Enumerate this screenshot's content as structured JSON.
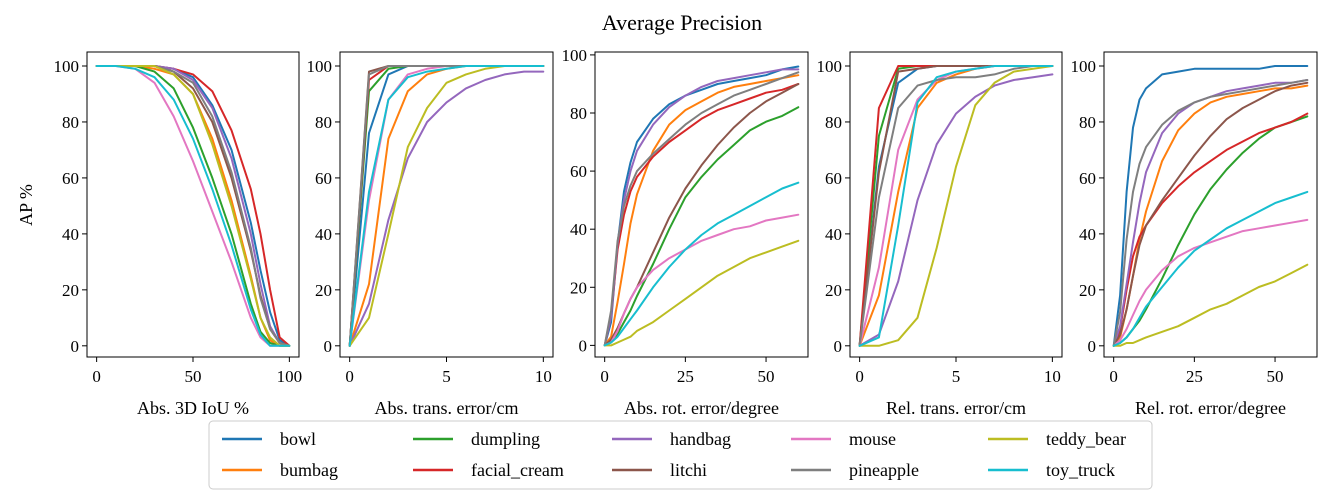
{
  "figure_title": "Average Precision",
  "ylabel": "AP %",
  "series_names": [
    "bowl",
    "bumbag",
    "dumpling",
    "facial_cream",
    "handbag",
    "litchi",
    "mouse",
    "pineapple",
    "teddy_bear",
    "toy_truck"
  ],
  "colors": {
    "bowl": "#1f77b4",
    "bumbag": "#ff7f0e",
    "dumpling": "#2ca02c",
    "facial_cream": "#d62728",
    "handbag": "#9467bd",
    "litchi": "#8c564b",
    "mouse": "#e377c2",
    "pineapple": "#7f7f7f",
    "teddy_bear": "#bcbd22",
    "toy_truck": "#17becf"
  },
  "legend": {
    "placement": "bottom-center",
    "columns": 5
  },
  "chart_data": [
    {
      "type": "line",
      "xlabel": "Abs. 3D IoU %",
      "ylabel": "AP %",
      "xlim": [
        -5,
        105
      ],
      "ylim": [
        -4,
        105
      ],
      "xticks": [
        0,
        50,
        100
      ],
      "yticks": [
        0,
        20,
        40,
        60,
        80,
        100
      ],
      "grid": false,
      "x": [
        0,
        10,
        20,
        30,
        40,
        50,
        60,
        70,
        80,
        85,
        90,
        95,
        100
      ],
      "series": [
        {
          "name": "bowl",
          "values": [
            100,
            100,
            100,
            100,
            99,
            96,
            86,
            70,
            44,
            27,
            12,
            2,
            0
          ]
        },
        {
          "name": "bumbag",
          "values": [
            100,
            100,
            100,
            99,
            97,
            90,
            74,
            52,
            25,
            10,
            2,
            0,
            0
          ]
        },
        {
          "name": "dumpling",
          "values": [
            100,
            100,
            100,
            98,
            92,
            78,
            60,
            40,
            15,
            5,
            1,
            0,
            0
          ]
        },
        {
          "name": "facial_cream",
          "values": [
            100,
            100,
            100,
            100,
            99,
            97,
            91,
            77,
            56,
            40,
            20,
            3,
            0
          ]
        },
        {
          "name": "handbag",
          "values": [
            100,
            100,
            100,
            100,
            99,
            95,
            85,
            67,
            40,
            22,
            7,
            1,
            0
          ]
        },
        {
          "name": "litchi",
          "values": [
            100,
            100,
            100,
            100,
            98,
            92,
            80,
            60,
            34,
            18,
            6,
            1,
            0
          ]
        },
        {
          "name": "mouse",
          "values": [
            100,
            100,
            99,
            94,
            82,
            66,
            48,
            30,
            10,
            3,
            0,
            0,
            0
          ]
        },
        {
          "name": "pineapple",
          "values": [
            100,
            100,
            100,
            100,
            98,
            94,
            82,
            62,
            35,
            17,
            6,
            1,
            0
          ]
        },
        {
          "name": "teddy_bear",
          "values": [
            100,
            100,
            100,
            100,
            97,
            90,
            72,
            50,
            24,
            10,
            3,
            0,
            0
          ]
        },
        {
          "name": "toy_truck",
          "values": [
            100,
            100,
            99,
            96,
            88,
            74,
            56,
            36,
            13,
            4,
            0,
            0,
            0
          ]
        }
      ]
    },
    {
      "type": "line",
      "xlabel": "Abs. trans. error/cm",
      "xlim": [
        -0.5,
        10.5
      ],
      "ylim": [
        -4,
        105
      ],
      "xticks": [
        0,
        5,
        10
      ],
      "yticks": [
        0,
        20,
        40,
        60,
        80,
        100
      ],
      "grid": false,
      "x": [
        0,
        1,
        2,
        3,
        4,
        5,
        6,
        7,
        8,
        9,
        10
      ],
      "series": [
        {
          "name": "bowl",
          "values": [
            0,
            76,
            97,
            100,
            100,
            100,
            100,
            100,
            100,
            100,
            100
          ]
        },
        {
          "name": "bumbag",
          "values": [
            0,
            22,
            74,
            91,
            97,
            99,
            100,
            100,
            100,
            100,
            100
          ]
        },
        {
          "name": "dumpling",
          "values": [
            0,
            91,
            99,
            100,
            100,
            100,
            100,
            100,
            100,
            100,
            100
          ]
        },
        {
          "name": "facial_cream",
          "values": [
            0,
            95,
            100,
            100,
            100,
            100,
            100,
            100,
            100,
            100,
            100
          ]
        },
        {
          "name": "handbag",
          "values": [
            0,
            15,
            45,
            67,
            80,
            87,
            92,
            95,
            97,
            98,
            98
          ]
        },
        {
          "name": "litchi",
          "values": [
            0,
            98,
            100,
            100,
            100,
            100,
            100,
            100,
            100,
            100,
            100
          ]
        },
        {
          "name": "mouse",
          "values": [
            0,
            52,
            88,
            97,
            99,
            100,
            100,
            100,
            100,
            100,
            100
          ]
        },
        {
          "name": "pineapple",
          "values": [
            0,
            97,
            100,
            100,
            100,
            100,
            100,
            100,
            100,
            100,
            100
          ]
        },
        {
          "name": "teddy_bear",
          "values": [
            0,
            10,
            40,
            71,
            85,
            94,
            97,
            99,
            100,
            100,
            100
          ]
        },
        {
          "name": "toy_truck",
          "values": [
            0,
            55,
            88,
            96,
            98,
            99,
            100,
            100,
            100,
            100,
            100
          ]
        }
      ]
    },
    {
      "type": "line",
      "xlabel": "Abs. rot. error/degree",
      "xlim": [
        -3,
        63
      ],
      "ylim": [
        -4,
        101
      ],
      "xticks": [
        0,
        25,
        50
      ],
      "yticks": [
        0,
        20,
        40,
        60,
        80,
        100
      ],
      "grid": false,
      "x": [
        0,
        2,
        4,
        6,
        8,
        10,
        15,
        20,
        25,
        30,
        35,
        40,
        45,
        50,
        55,
        60
      ],
      "series": [
        {
          "name": "bowl",
          "values": [
            0,
            8,
            35,
            53,
            63,
            70,
            78,
            83,
            86,
            88,
            90,
            91,
            92,
            93,
            95,
            96
          ]
        },
        {
          "name": "bumbag",
          "values": [
            0,
            3,
            15,
            28,
            42,
            52,
            67,
            76,
            81,
            84,
            87,
            89,
            90,
            91,
            92,
            93
          ]
        },
        {
          "name": "dumpling",
          "values": [
            0,
            1,
            4,
            8,
            12,
            17,
            28,
            40,
            51,
            58,
            64,
            69,
            74,
            77,
            79,
            82
          ]
        },
        {
          "name": "facial_cream",
          "values": [
            0,
            10,
            33,
            45,
            53,
            58,
            65,
            70,
            74,
            78,
            81,
            83,
            85,
            87,
            88,
            90
          ]
        },
        {
          "name": "handbag",
          "values": [
            0,
            10,
            35,
            50,
            60,
            67,
            76,
            82,
            86,
            89,
            91,
            92,
            93,
            94,
            95,
            95
          ]
        },
        {
          "name": "litchi",
          "values": [
            0,
            2,
            6,
            11,
            16,
            20,
            32,
            44,
            54,
            62,
            69,
            75,
            80,
            84,
            87,
            90
          ]
        },
        {
          "name": "mouse",
          "values": [
            0,
            1,
            5,
            11,
            16,
            20,
            26,
            30,
            33,
            36,
            38,
            40,
            41,
            43,
            44,
            45
          ]
        },
        {
          "name": "pineapple",
          "values": [
            0,
            12,
            36,
            48,
            55,
            60,
            66,
            71,
            76,
            80,
            83,
            86,
            88,
            90,
            92,
            94
          ]
        },
        {
          "name": "teddy_bear",
          "values": [
            0,
            0,
            1,
            2,
            3,
            5,
            8,
            12,
            16,
            20,
            24,
            27,
            30,
            32,
            34,
            36
          ]
        },
        {
          "name": "toy_truck",
          "values": [
            0,
            1,
            3,
            6,
            9,
            12,
            20,
            27,
            33,
            38,
            42,
            45,
            48,
            51,
            54,
            56
          ]
        }
      ]
    },
    {
      "type": "line",
      "xlabel": "Rel. trans. error/cm",
      "xlim": [
        -0.5,
        10.5
      ],
      "ylim": [
        -4,
        105
      ],
      "xticks": [
        0,
        5,
        10
      ],
      "yticks": [
        0,
        20,
        40,
        60,
        80,
        100
      ],
      "grid": false,
      "x": [
        0,
        1,
        2,
        3,
        4,
        5,
        6,
        7,
        8,
        9,
        10
      ],
      "series": [
        {
          "name": "bowl",
          "values": [
            0,
            64,
            94,
            99,
            100,
            100,
            100,
            100,
            100,
            100,
            100
          ]
        },
        {
          "name": "bumbag",
          "values": [
            0,
            18,
            55,
            85,
            94,
            97,
            99,
            100,
            100,
            100,
            100
          ]
        },
        {
          "name": "dumpling",
          "values": [
            0,
            75,
            99,
            100,
            100,
            100,
            100,
            100,
            100,
            100,
            100
          ]
        },
        {
          "name": "facial_cream",
          "values": [
            0,
            85,
            100,
            100,
            100,
            100,
            100,
            100,
            100,
            100,
            100
          ]
        },
        {
          "name": "handbag",
          "values": [
            0,
            4,
            23,
            52,
            72,
            83,
            89,
            93,
            95,
            96,
            97
          ]
        },
        {
          "name": "litchi",
          "values": [
            0,
            62,
            98,
            99,
            100,
            100,
            100,
            100,
            100,
            100,
            100
          ]
        },
        {
          "name": "mouse",
          "values": [
            0,
            28,
            70,
            88,
            95,
            98,
            99,
            100,
            100,
            100,
            100
          ]
        },
        {
          "name": "pineapple",
          "values": [
            0,
            53,
            85,
            93,
            95,
            96,
            96,
            97,
            99,
            100,
            100
          ]
        },
        {
          "name": "teddy_bear",
          "values": [
            0,
            0,
            2,
            10,
            35,
            64,
            86,
            94,
            98,
            99,
            100
          ]
        },
        {
          "name": "toy_truck",
          "values": [
            0,
            3,
            43,
            87,
            96,
            98,
            99,
            100,
            100,
            100,
            100
          ]
        }
      ]
    },
    {
      "type": "line",
      "xlabel": "Rel. rot. error/degree",
      "xlim": [
        -3,
        63
      ],
      "ylim": [
        -4,
        105
      ],
      "xticks": [
        0,
        25,
        50
      ],
      "yticks": [
        0,
        20,
        40,
        60,
        80,
        100
      ],
      "grid": false,
      "x": [
        0,
        2,
        4,
        6,
        8,
        10,
        15,
        20,
        25,
        30,
        35,
        40,
        45,
        50,
        55,
        60
      ],
      "series": [
        {
          "name": "bowl",
          "values": [
            0,
            18,
            55,
            78,
            88,
            92,
            97,
            98,
            99,
            99,
            99,
            99,
            99,
            100,
            100,
            100
          ]
        },
        {
          "name": "bumbag",
          "values": [
            0,
            3,
            13,
            25,
            38,
            48,
            66,
            77,
            83,
            87,
            89,
            90,
            91,
            92,
            92,
            93
          ]
        },
        {
          "name": "dumpling",
          "values": [
            0,
            1,
            3,
            6,
            9,
            13,
            24,
            36,
            47,
            56,
            63,
            69,
            74,
            78,
            80,
            82
          ]
        },
        {
          "name": "facial_cream",
          "values": [
            0,
            6,
            20,
            32,
            39,
            43,
            51,
            57,
            62,
            66,
            70,
            73,
            76,
            78,
            80,
            83
          ]
        },
        {
          "name": "handbag",
          "values": [
            0,
            7,
            22,
            37,
            51,
            62,
            76,
            83,
            87,
            89,
            91,
            92,
            93,
            94,
            94,
            95
          ]
        },
        {
          "name": "litchi",
          "values": [
            0,
            4,
            13,
            25,
            36,
            43,
            52,
            60,
            68,
            75,
            81,
            85,
            88,
            91,
            93,
            94
          ]
        },
        {
          "name": "mouse",
          "values": [
            0,
            2,
            6,
            11,
            16,
            20,
            27,
            32,
            35,
            37,
            39,
            41,
            42,
            43,
            44,
            45
          ]
        },
        {
          "name": "pineapple",
          "values": [
            0,
            12,
            38,
            55,
            65,
            71,
            79,
            84,
            87,
            89,
            90,
            91,
            92,
            93,
            94,
            95
          ]
        },
        {
          "name": "teddy_bear",
          "values": [
            0,
            0,
            1,
            1,
            2,
            3,
            5,
            7,
            10,
            13,
            15,
            18,
            21,
            23,
            26,
            29
          ]
        },
        {
          "name": "toy_truck",
          "values": [
            0,
            1,
            3,
            6,
            10,
            14,
            21,
            28,
            34,
            38,
            42,
            45,
            48,
            51,
            53,
            55
          ]
        }
      ]
    }
  ]
}
